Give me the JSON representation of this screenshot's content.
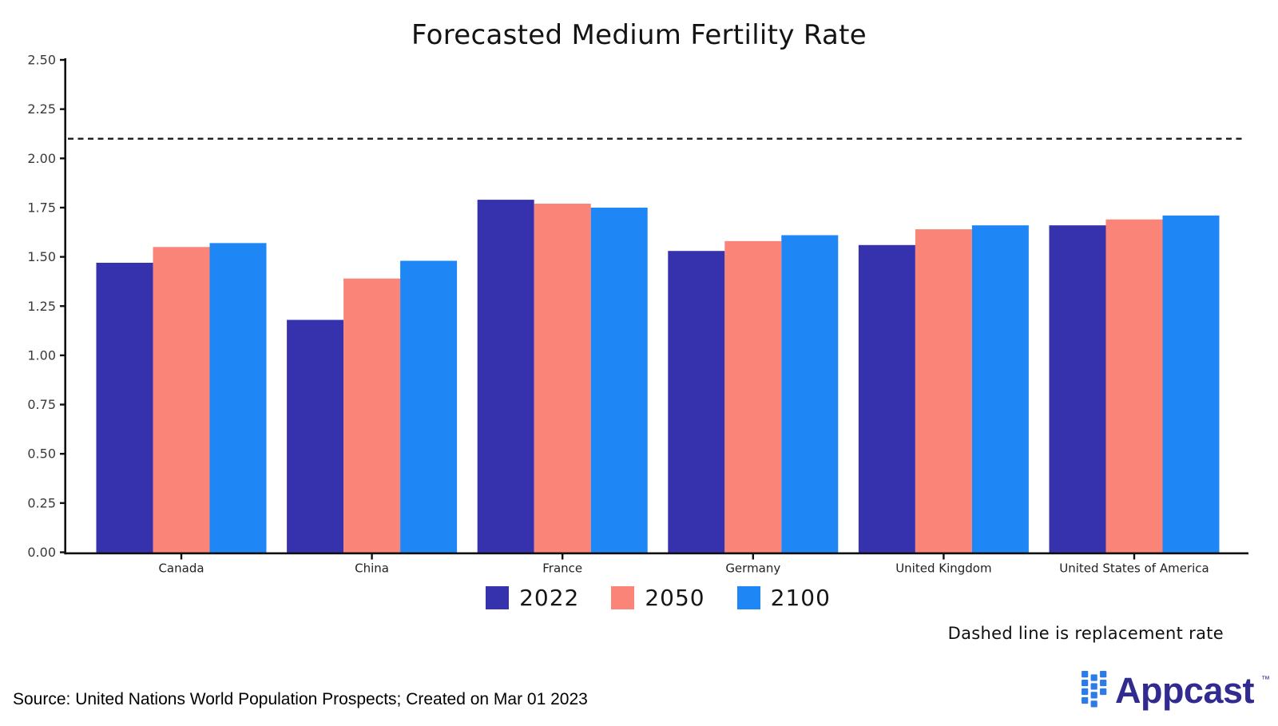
{
  "chart_data": {
    "type": "bar",
    "title": "Forecasted Medium Fertility Rate",
    "categories": [
      "Canada",
      "China",
      "France",
      "Germany",
      "United Kingdom",
      "United States of America"
    ],
    "series": [
      {
        "name": "2022",
        "color": "#3632AE",
        "values": [
          1.47,
          1.18,
          1.79,
          1.53,
          1.56,
          1.66
        ]
      },
      {
        "name": "2050",
        "color": "#F98477",
        "values": [
          1.55,
          1.39,
          1.77,
          1.58,
          1.64,
          1.69
        ]
      },
      {
        "name": "2100",
        "color": "#1E86F5",
        "values": [
          1.57,
          1.48,
          1.75,
          1.61,
          1.66,
          1.71
        ]
      }
    ],
    "ylim": [
      0,
      2.5
    ],
    "ytick_step": 0.25,
    "ytick_labels": [
      "0.00",
      "0.25",
      "0.50",
      "0.75",
      "1.00",
      "1.25",
      "1.50",
      "1.75",
      "2.00",
      "2.25",
      "2.50"
    ],
    "reference_line": {
      "value": 2.1,
      "style": "dashed",
      "color": "#1a1a1a",
      "label": "Dashed line is replacement rate"
    },
    "legend_position": "bottom",
    "grid": false,
    "axis_color": "#111111",
    "tick_label_color": "#3a3a3a",
    "category_label_color": "#222222"
  },
  "footer": {
    "source": "Source: United Nations World Population Prospects; Created on Mar 01 2023"
  },
  "branding": {
    "logo_text": "Appcast",
    "trademark": "™",
    "icon": "appcast-squares-icon",
    "icon_color": "#2D7BE5",
    "text_color": "#312B8F"
  }
}
